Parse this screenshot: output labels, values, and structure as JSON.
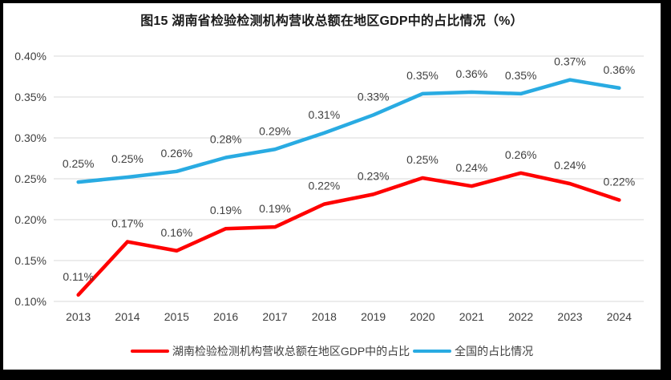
{
  "frame_color": "#000000",
  "chart_data": {
    "type": "line",
    "title": "图15 湖南省检验检测机构营收总额在地区GDP中的占比情况（%）",
    "categories": [
      "2013",
      "2014",
      "2015",
      "2016",
      "2017",
      "2018",
      "2019",
      "2020",
      "2021",
      "2022",
      "2023",
      "2024"
    ],
    "series": [
      {
        "key": "hunan",
        "name": "湖南检验检测机构营收总额在地区GDP中的占比",
        "color": "#FF0000",
        "values": [
          0.108,
          0.173,
          0.162,
          0.189,
          0.191,
          0.219,
          0.231,
          0.251,
          0.241,
          0.257,
          0.244,
          0.224
        ],
        "labels": [
          "0.11%",
          "0.17%",
          "0.16%",
          "0.19%",
          "0.19%",
          "0.22%",
          "0.23%",
          "0.25%",
          "0.24%",
          "0.26%",
          "0.24%",
          "0.22%"
        ]
      },
      {
        "key": "national",
        "name": "全国的占比情况",
        "color": "#29ABE2",
        "values": [
          0.246,
          0.252,
          0.259,
          0.276,
          0.286,
          0.306,
          0.328,
          0.354,
          0.356,
          0.354,
          0.371,
          0.361
        ],
        "labels": [
          "0.25%",
          "0.25%",
          "0.26%",
          "0.28%",
          "0.29%",
          "0.31%",
          "0.33%",
          "0.35%",
          "0.36%",
          "0.35%",
          "0.37%",
          "0.36%"
        ]
      }
    ],
    "ylim": [
      0.1,
      0.4
    ],
    "yticks": {
      "values": [
        0.1,
        0.15,
        0.2,
        0.25,
        0.3,
        0.35,
        0.4
      ],
      "labels": [
        "0.10%",
        "0.15%",
        "0.20%",
        "0.25%",
        "0.30%",
        "0.35%",
        "0.40%"
      ]
    },
    "grid": true,
    "legend_position": "bottom",
    "styles": {
      "gridline_color": "#D9D9D9",
      "tick_text_color": "#404040",
      "data_label_color": "#404040",
      "title_color": "#1a1a1a",
      "line_width": 4.5
    }
  }
}
